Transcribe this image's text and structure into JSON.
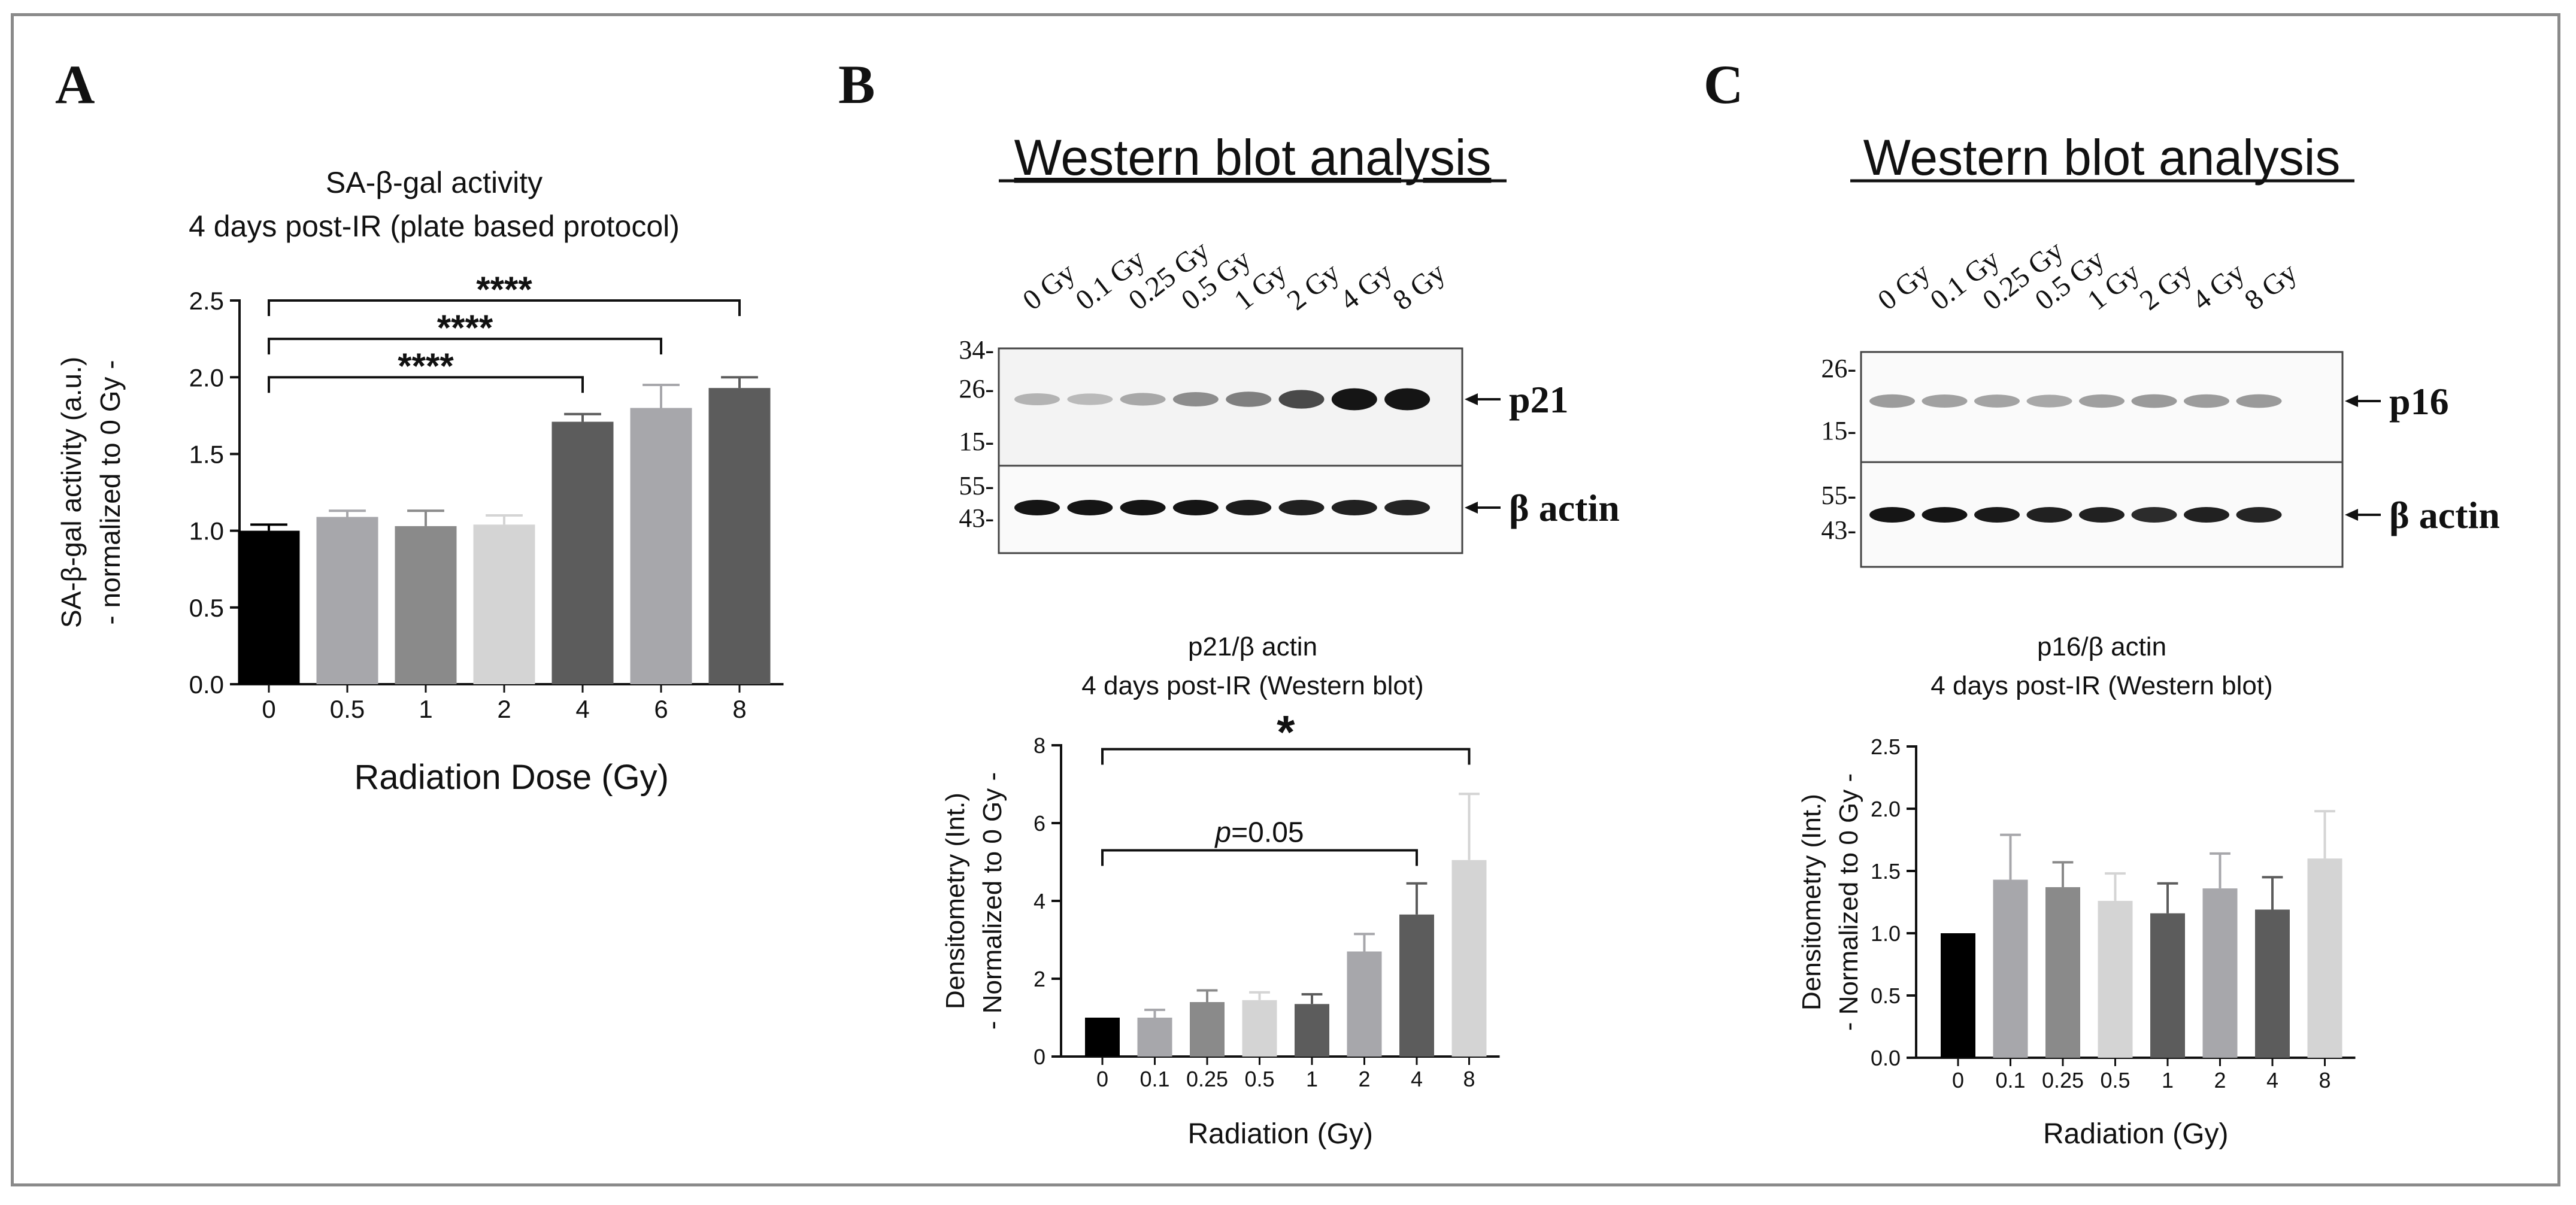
{
  "colors": {
    "black": "#000000",
    "grey_dark": "#5c5c5c",
    "grey_mid": "#8a8a8a",
    "grey_light": "#a7a7ab",
    "grey_pale": "#d4d4d4",
    "frame": "#8a8a8a"
  },
  "panels": {
    "A": {
      "letter": "A"
    },
    "B": {
      "letter": "B",
      "blot_title": "Western blot analysis",
      "lane_labels": [
        "0 Gy",
        "0.1 Gy",
        "0.25 Gy",
        "0.5 Gy",
        "1 Gy",
        "2 Gy",
        "4 Gy",
        "8 Gy"
      ],
      "top_blot": {
        "protein": "p21",
        "markers": [
          "34-",
          "26-",
          "15-"
        ],
        "band_intensity": [
          0.25,
          0.22,
          0.3,
          0.42,
          0.48,
          0.72,
          0.95,
          0.95
        ]
      },
      "bottom_blot": {
        "protein": "β actin",
        "markers": [
          "55-",
          "43-"
        ],
        "band_intensity": [
          0.95,
          0.95,
          0.95,
          0.95,
          0.92,
          0.9,
          0.9,
          0.88
        ]
      }
    },
    "C": {
      "letter": "C",
      "blot_title": "Western blot analysis",
      "lane_labels": [
        "0 Gy",
        "0.1 Gy",
        "0.25 Gy",
        "0.5 Gy",
        "1 Gy",
        "2 Gy",
        "4 Gy",
        "8 Gy"
      ],
      "top_blot": {
        "protein": "p16",
        "markers": [
          "26-",
          "15-"
        ],
        "band_intensity": [
          0.35,
          0.33,
          0.32,
          0.3,
          0.34,
          0.36,
          0.35,
          0.36
        ]
      },
      "bottom_blot": {
        "protein": "β actin",
        "markers": [
          "55-",
          "43-"
        ],
        "band_intensity": [
          0.95,
          0.95,
          0.93,
          0.9,
          0.9,
          0.85,
          0.9,
          0.88
        ]
      }
    }
  },
  "chart_data": [
    {
      "id": "A",
      "type": "bar",
      "title": [
        "SA-β-gal activity",
        "4 days post-IR (plate based protocol)"
      ],
      "xlabel": "Radiation Dose (Gy)",
      "ylabel": [
        "SA-β-gal activity (a.u.)",
        "- normalized to 0 Gy -"
      ],
      "categories": [
        "0",
        "0.5",
        "1",
        "2",
        "4",
        "6",
        "8"
      ],
      "values": [
        1.0,
        1.09,
        1.03,
        1.04,
        1.71,
        1.8,
        1.93
      ],
      "errors": [
        0.04,
        0.04,
        0.1,
        0.06,
        0.05,
        0.15,
        0.07
      ],
      "bar_colors": [
        "#000000",
        "#a7a7ab",
        "#8a8a8a",
        "#d4d4d4",
        "#5c5c5c",
        "#a7a7ab",
        "#5c5c5c"
      ],
      "ylim": [
        0,
        2.5
      ],
      "yticks": [
        "0.0",
        "0.5",
        "1.0",
        "1.5",
        "2.0",
        "2.5"
      ],
      "significance": [
        {
          "from": "0",
          "to": "4",
          "label": "****",
          "level": 2.0
        },
        {
          "from": "0",
          "to": "6",
          "label": "****",
          "level": 2.25
        },
        {
          "from": "0",
          "to": "8",
          "label": "****",
          "level": 2.5
        }
      ]
    },
    {
      "id": "B",
      "type": "bar",
      "title": [
        "p21/β actin",
        "4 days post-IR (Western blot)"
      ],
      "xlabel": "Radiation (Gy)",
      "ylabel": [
        "Densitometry (Int.)",
        "- Normalized to 0 Gy -"
      ],
      "categories": [
        "0",
        "0.1",
        "0.25",
        "0.5",
        "1",
        "2",
        "4",
        "8"
      ],
      "values": [
        1.0,
        1.0,
        1.4,
        1.45,
        1.35,
        2.7,
        3.65,
        5.05
      ],
      "errors": [
        0.0,
        0.2,
        0.3,
        0.2,
        0.25,
        0.45,
        0.8,
        1.7
      ],
      "bar_colors": [
        "#000000",
        "#a7a7ab",
        "#8a8a8a",
        "#d4d4d4",
        "#5c5c5c",
        "#a7a7ab",
        "#5c5c5c",
        "#d4d4d4"
      ],
      "ylim": [
        0,
        8
      ],
      "yticks": [
        "0",
        "2",
        "4",
        "6",
        "8"
      ],
      "significance": [
        {
          "from": "0",
          "to": "4",
          "label_italic": "p",
          "label": "=0.05",
          "level": 5.3
        },
        {
          "from": "0",
          "to": "8",
          "label": "*",
          "level": 7.9
        }
      ]
    },
    {
      "id": "C",
      "type": "bar",
      "title": [
        "p16/β actin",
        "4 days post-IR (Western blot)"
      ],
      "xlabel": "Radiation (Gy)",
      "ylabel": [
        "Densitometry (Int.)",
        "- Normalized to 0 Gy -"
      ],
      "categories": [
        "0",
        "0.1",
        "0.25",
        "0.5",
        "1",
        "2",
        "4",
        "8"
      ],
      "values": [
        1.0,
        1.43,
        1.37,
        1.26,
        1.16,
        1.36,
        1.19,
        1.6
      ],
      "errors": [
        0.0,
        0.36,
        0.2,
        0.22,
        0.24,
        0.28,
        0.26,
        0.38
      ],
      "bar_colors": [
        "#000000",
        "#a7a7ab",
        "#8a8a8a",
        "#d4d4d4",
        "#5c5c5c",
        "#a7a7ab",
        "#5c5c5c",
        "#d4d4d4"
      ],
      "ylim": [
        0,
        2.5
      ],
      "yticks": [
        "0.0",
        "0.5",
        "1.0",
        "1.5",
        "2.0",
        "2.5"
      ],
      "significance": []
    }
  ]
}
